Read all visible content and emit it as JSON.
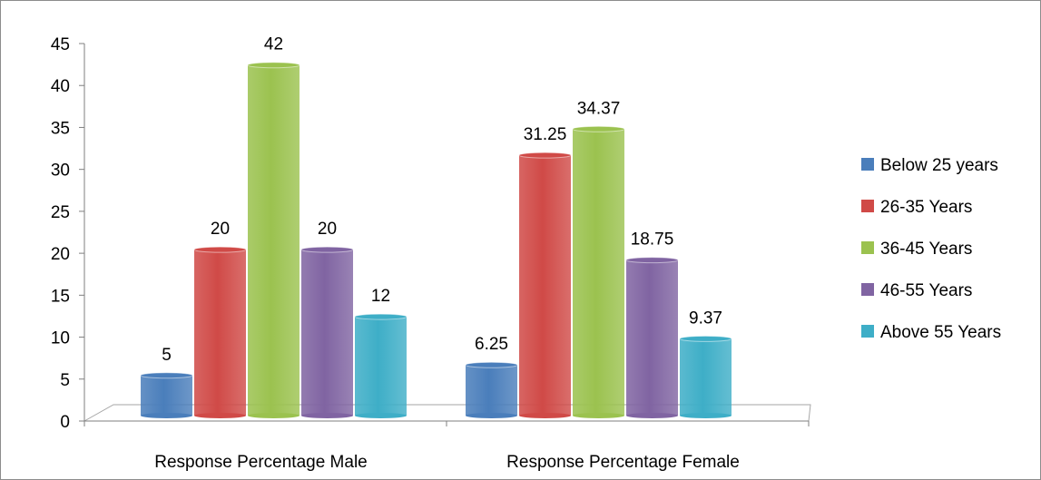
{
  "chart_data": {
    "type": "bar",
    "title": "",
    "xlabel": "",
    "ylabel": "",
    "ylim": [
      0,
      45
    ],
    "ytick_step": 5,
    "grid": false,
    "legend_position": "right",
    "categories": [
      "Response Percentage Male",
      "Response Percentage Female"
    ],
    "series": [
      {
        "name": "Below 25 years",
        "values": [
          5,
          6.25
        ],
        "labels": [
          "5",
          "6.25"
        ],
        "color": "#4a7ebb"
      },
      {
        "name": "26-35 Years",
        "values": [
          20,
          31.25
        ],
        "labels": [
          "20",
          "31.25"
        ],
        "color": "#d04a47"
      },
      {
        "name": "36-45 Years",
        "values": [
          42,
          34.37
        ],
        "labels": [
          "42",
          "34.37"
        ],
        "color": "#9bc24f"
      },
      {
        "name": "46-55 Years",
        "values": [
          20,
          18.75
        ],
        "labels": [
          "20",
          "18.75"
        ],
        "color": "#8064a2"
      },
      {
        "name": "Above 55 Years",
        "values": [
          12,
          9.37
        ],
        "labels": [
          "12",
          "9.37"
        ],
        "color": "#3eaec7"
      }
    ]
  }
}
